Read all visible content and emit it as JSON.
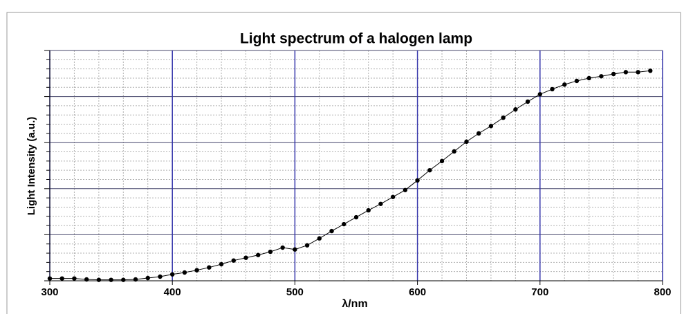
{
  "chart_data": {
    "type": "line",
    "title": "Light spectrum of a halogen lamp",
    "x_label": "λ/nm",
    "y_label": "Light Intensity (a.u.)",
    "x": [
      300,
      310,
      320,
      330,
      340,
      350,
      360,
      370,
      380,
      390,
      400,
      410,
      420,
      430,
      440,
      450,
      460,
      470,
      480,
      490,
      500,
      510,
      520,
      530,
      540,
      550,
      560,
      570,
      580,
      590,
      600,
      610,
      620,
      630,
      640,
      650,
      660,
      670,
      680,
      690,
      700,
      710,
      720,
      730,
      740,
      750,
      760,
      770,
      780,
      790
    ],
    "series": [
      {
        "name": null,
        "color": "#000000",
        "values": [
          0.05,
          0.05,
          0.05,
          0.03,
          0.02,
          0.02,
          0.02,
          0.03,
          0.06,
          0.09,
          0.14,
          0.18,
          0.23,
          0.29,
          0.36,
          0.44,
          0.5,
          0.56,
          0.63,
          0.72,
          0.68,
          0.77,
          0.92,
          1.08,
          1.23,
          1.38,
          1.53,
          1.67,
          1.82,
          1.97,
          2.18,
          2.4,
          2.6,
          2.81,
          3.02,
          3.2,
          3.36,
          3.54,
          3.72,
          3.89,
          4.05,
          4.16,
          4.26,
          4.34,
          4.4,
          4.44,
          4.49,
          4.53,
          4.53,
          4.56
        ]
      }
    ],
    "xlim": [
      300,
      800
    ],
    "xticks": [
      300,
      400,
      500,
      600,
      700,
      800
    ],
    "x_minor_ticks": [
      320,
      340,
      360,
      380,
      420,
      440,
      460,
      480,
      520,
      540,
      560,
      580,
      620,
      640,
      660,
      680,
      720,
      740,
      760,
      780
    ],
    "ylim": [
      0,
      5
    ],
    "yticks": [
      0,
      1,
      2,
      3,
      4,
      5
    ],
    "y_minor_ticks": [
      0.2,
      0.4,
      0.6,
      0.8,
      1.2,
      1.4,
      1.6,
      1.8,
      2.2,
      2.4,
      2.6,
      2.8,
      3.2,
      3.4,
      3.6,
      3.8,
      4.2,
      4.4,
      4.6,
      4.8
    ],
    "grid": true
  }
}
